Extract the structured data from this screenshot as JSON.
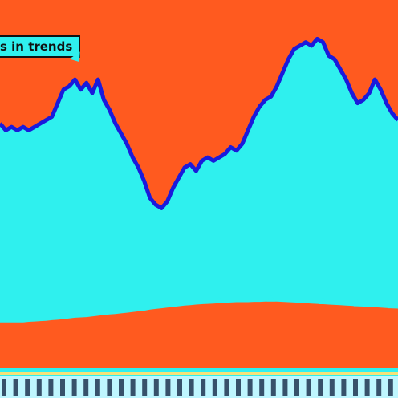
{
  "chart_data": {
    "type": "area",
    "title": "s in trends",
    "xlabel": "",
    "ylabel": "",
    "ylim": [
      0,
      100
    ],
    "grid": false,
    "legend": "none",
    "colors": {
      "background": "#ff5a1f",
      "top_band": "#ff5a1f",
      "main_area": "#2ff0ee",
      "main_edge": "#1a1adc",
      "lower_band": "#ff5a1f",
      "base_band": "#2ff0ee",
      "base_stripe": "#f5e27a",
      "tick_text": "#0a1a3a"
    },
    "x": [
      0,
      1,
      2,
      3,
      4,
      5,
      6,
      7,
      8,
      9,
      10,
      11,
      12,
      13,
      14,
      15,
      16,
      17,
      18,
      19,
      20,
      21,
      22,
      23,
      24,
      25,
      26,
      27,
      28,
      29,
      30,
      31,
      32,
      33,
      34,
      35,
      36,
      37,
      38,
      39,
      40,
      41,
      42,
      43,
      44,
      45,
      46,
      47,
      48,
      49,
      50,
      51,
      52,
      53,
      54,
      55,
      56,
      57,
      58,
      59,
      60,
      61,
      62,
      63,
      64,
      65,
      66,
      67,
      68,
      69
    ],
    "series": [
      {
        "values": [
          73,
          71,
          72,
          71,
          72,
          71,
          72,
          73,
          74,
          75,
          79,
          83,
          84,
          86,
          83,
          85,
          82,
          86,
          80,
          77,
          73,
          70,
          67,
          63,
          60,
          56,
          51,
          49,
          48,
          50,
          54,
          57,
          60,
          61,
          59,
          62,
          63,
          62,
          63,
          64,
          66,
          65,
          67,
          71,
          75,
          78,
          80,
          81,
          84,
          88,
          92,
          95,
          96,
          97,
          96,
          98,
          97,
          93,
          92,
          89,
          86,
          82,
          79,
          80,
          82,
          86,
          83,
          79,
          76,
          74
        ]
      },
      {
        "values": [
          19,
          19,
          19,
          19,
          19,
          19.2,
          19.3,
          19.4,
          19.5,
          19.7,
          19.8,
          20,
          20.2,
          20.4,
          20.5,
          20.6,
          20.8,
          21,
          21.2,
          21.4,
          21.5,
          21.7,
          21.9,
          22.1,
          22.3,
          22.5,
          22.8,
          23,
          23.2,
          23.4,
          23.6,
          23.8,
          24,
          24.1,
          24.3,
          24.4,
          24.5,
          24.6,
          24.7,
          24.8,
          24.9,
          25,
          25,
          25,
          25.1,
          25.1,
          25.2,
          25.2,
          25.2,
          25.1,
          25,
          24.9,
          24.8,
          24.7,
          24.6,
          24.5,
          24.4,
          24.3,
          24.2,
          24.1,
          24,
          23.9,
          23.8,
          23.7,
          23.6,
          23.5,
          23.4,
          23.3,
          23.2,
          23.1
        ]
      }
    ]
  }
}
